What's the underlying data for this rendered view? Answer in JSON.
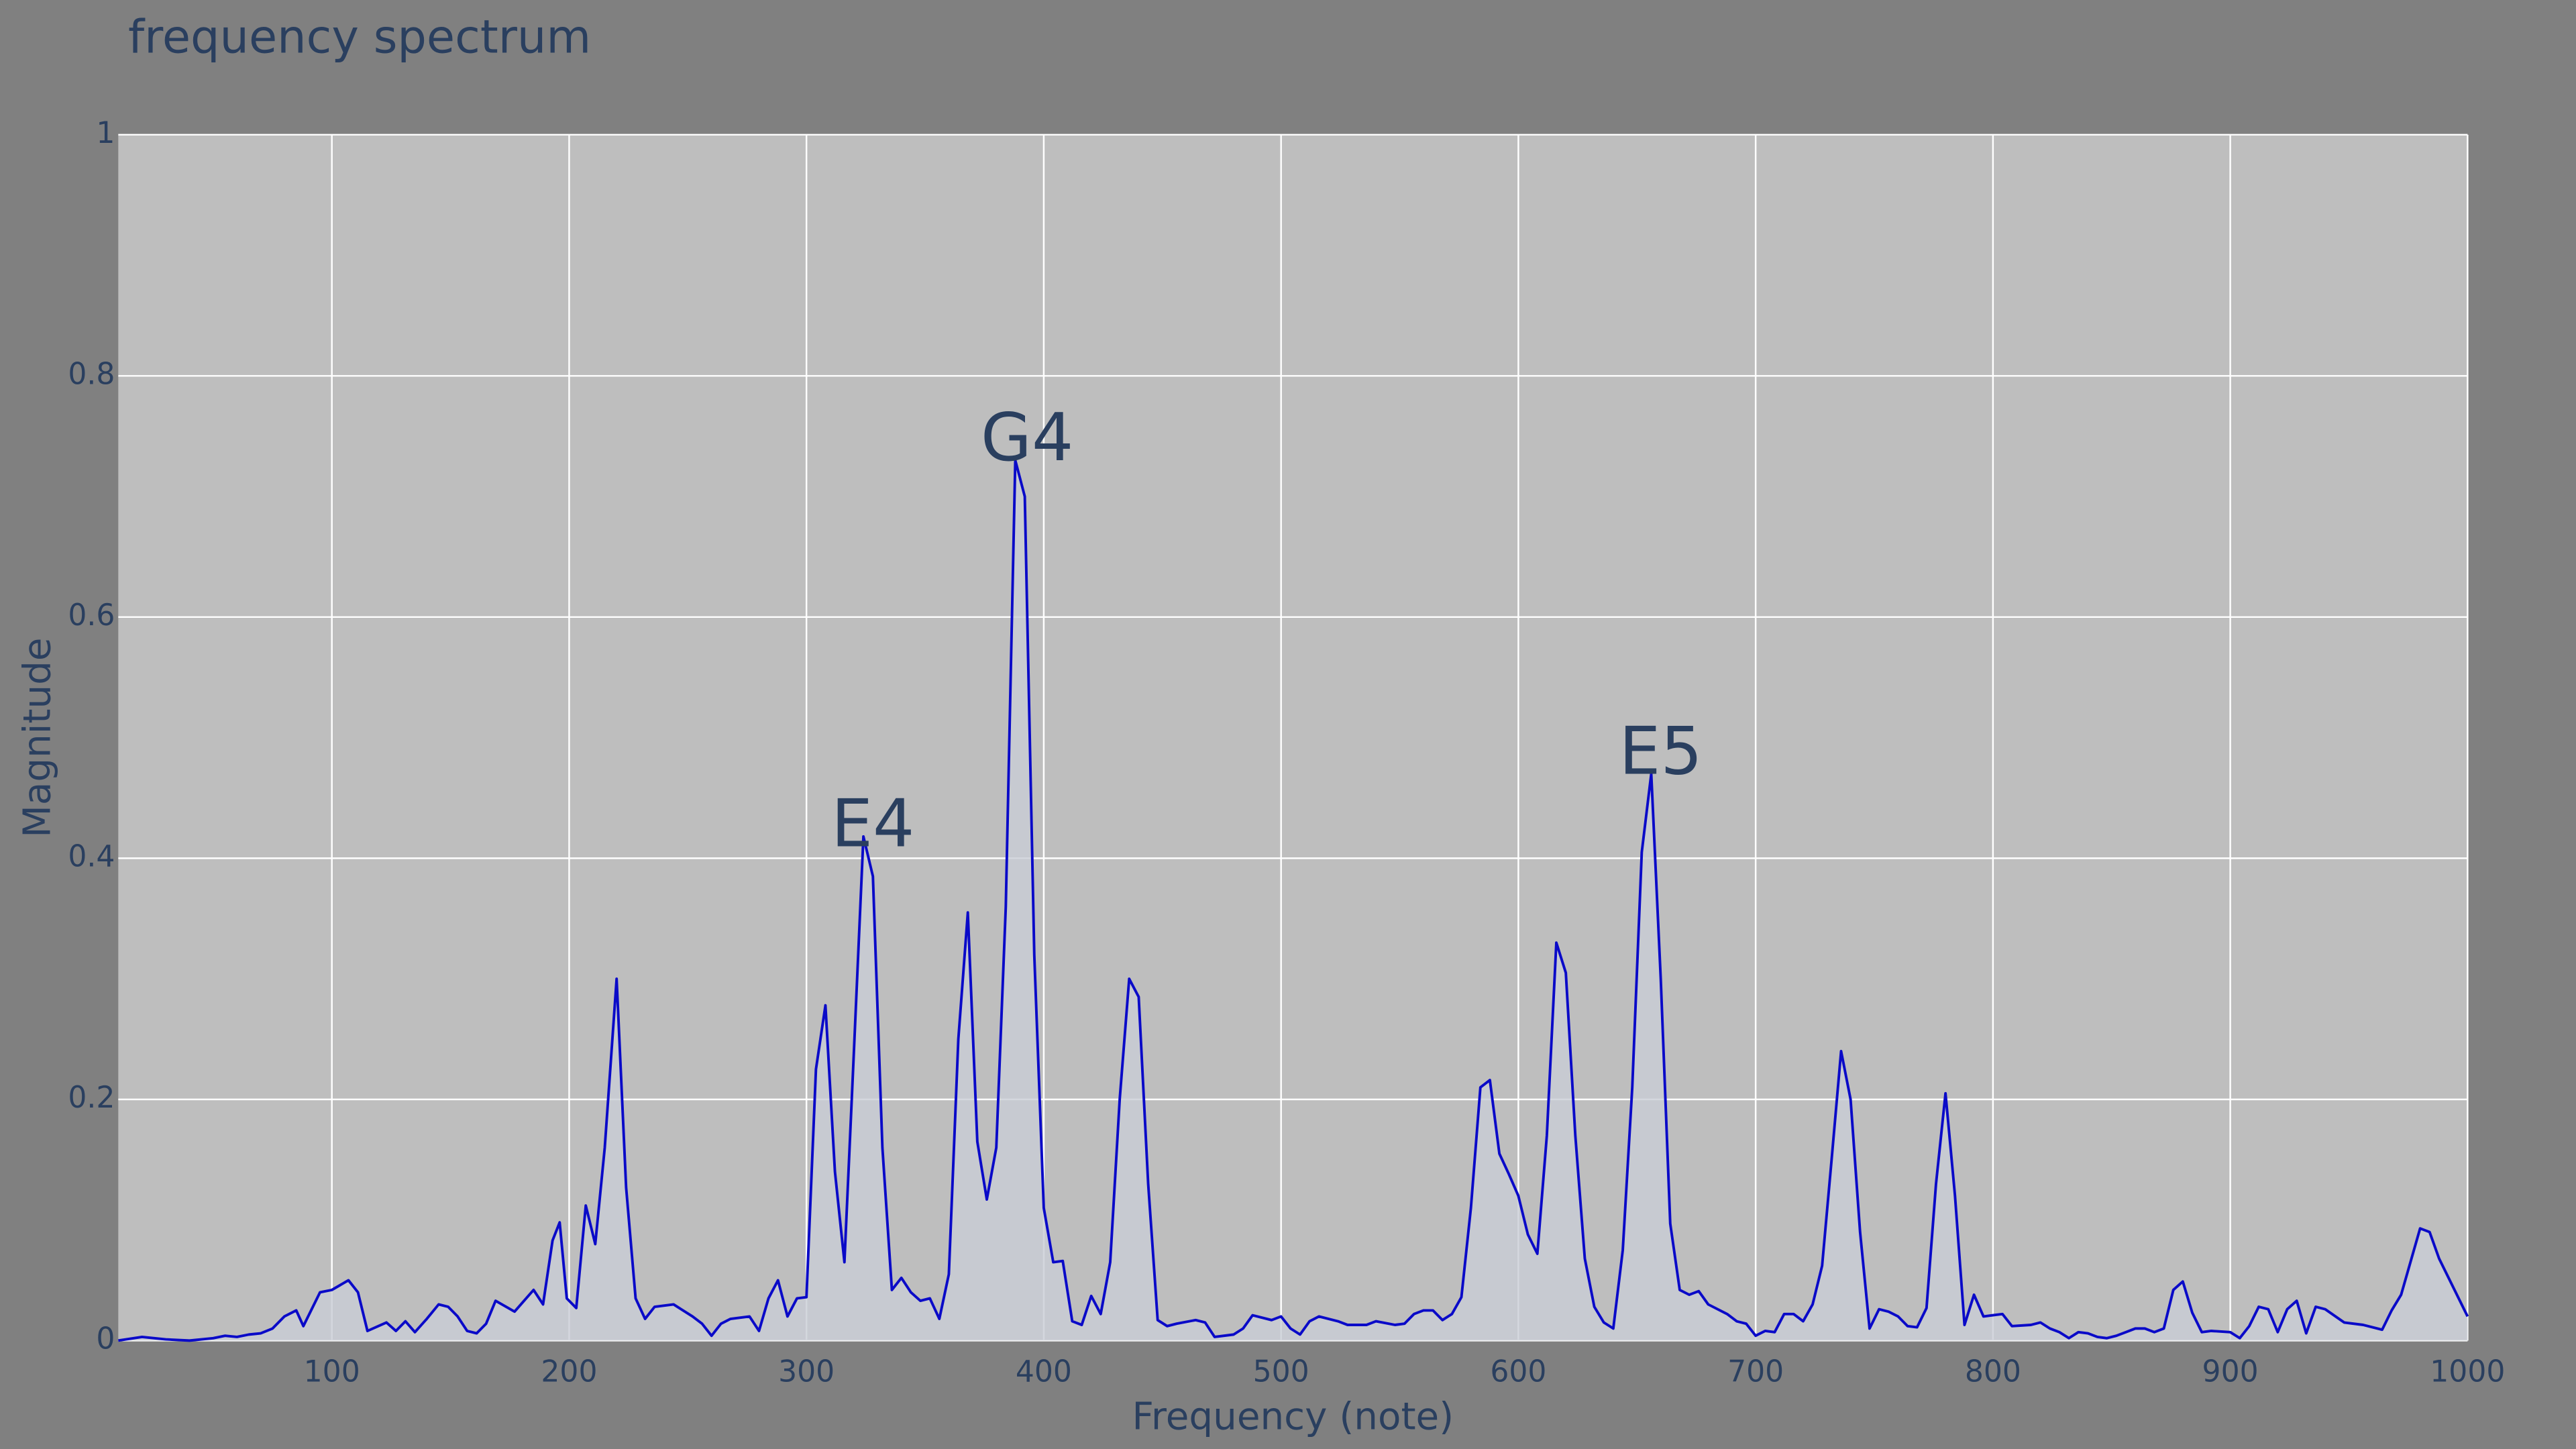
{
  "chart_data": {
    "type": "line",
    "title": "frequency spectrum",
    "x_label": "Frequency (note)",
    "y_label": "Magnitude",
    "xlim": [
      10,
      1000
    ],
    "ylim": [
      0,
      1
    ],
    "xticks": [
      100,
      200,
      300,
      400,
      500,
      600,
      700,
      800,
      900,
      1000
    ],
    "yticks": [
      0,
      0.2,
      0.4,
      0.6,
      0.8,
      1
    ],
    "grid": true,
    "color": "#0a0ac8",
    "fill_color": "#c9cdd6",
    "x": [
      10,
      20,
      30,
      40,
      50,
      55,
      60,
      65,
      70,
      75,
      80,
      85,
      88,
      95,
      100,
      107,
      111,
      115,
      123,
      127,
      131,
      135,
      140,
      145,
      149,
      153,
      157,
      161,
      165,
      169,
      177,
      185,
      189,
      193,
      196,
      199,
      203,
      207,
      211,
      215,
      220,
      224,
      228,
      232,
      236,
      244,
      252,
      256,
      260,
      264,
      268,
      276,
      280,
      284,
      288,
      292,
      296,
      300,
      304,
      308,
      312,
      316,
      320,
      324,
      328,
      332,
      336,
      340,
      344,
      348,
      352,
      356,
      360,
      364,
      368,
      372,
      376,
      380,
      384,
      388,
      392,
      396,
      400,
      404,
      408,
      412,
      416,
      420,
      424,
      428,
      432,
      436,
      440,
      444,
      448,
      452,
      456,
      464,
      468,
      472,
      480,
      484,
      488,
      496,
      500,
      504,
      508,
      512,
      516,
      524,
      528,
      536,
      540,
      548,
      552,
      556,
      560,
      564,
      568,
      572,
      576,
      580,
      584,
      588,
      592,
      596,
      600,
      604,
      608,
      612,
      616,
      620,
      624,
      628,
      632,
      636,
      640,
      644,
      648,
      652,
      656,
      660,
      664,
      668,
      672,
      676,
      680,
      688,
      692,
      696,
      700,
      704,
      708,
      712,
      716,
      720,
      724,
      728,
      732,
      736,
      740,
      744,
      748,
      752,
      756,
      760,
      764,
      768,
      772,
      776,
      780,
      784,
      788,
      792,
      796,
      800,
      804,
      808,
      816,
      820,
      824,
      828,
      832,
      836,
      840,
      844,
      848,
      852,
      856,
      860,
      864,
      868,
      872,
      876,
      880,
      884,
      888,
      892,
      900,
      904,
      908,
      912,
      916,
      920,
      924,
      928,
      932,
      936,
      940,
      948,
      956,
      964,
      968,
      972,
      980,
      984,
      988,
      992,
      1000
    ],
    "values": [
      0.0,
      0.003,
      0.001,
      0.0,
      0.002,
      0.004,
      0.003,
      0.005,
      0.006,
      0.01,
      0.02,
      0.025,
      0.012,
      0.04,
      0.042,
      0.05,
      0.04,
      0.008,
      0.015,
      0.008,
      0.016,
      0.007,
      0.018,
      0.03,
      0.028,
      0.02,
      0.008,
      0.006,
      0.014,
      0.033,
      0.024,
      0.042,
      0.03,
      0.083,
      0.098,
      0.035,
      0.027,
      0.112,
      0.08,
      0.16,
      0.3,
      0.127,
      0.035,
      0.018,
      0.028,
      0.03,
      0.02,
      0.014,
      0.004,
      0.014,
      0.018,
      0.02,
      0.008,
      0.035,
      0.05,
      0.02,
      0.035,
      0.036,
      0.225,
      0.278,
      0.14,
      0.065,
      0.24,
      0.418,
      0.385,
      0.16,
      0.042,
      0.052,
      0.04,
      0.033,
      0.035,
      0.018,
      0.055,
      0.25,
      0.355,
      0.165,
      0.117,
      0.16,
      0.36,
      0.73,
      0.7,
      0.32,
      0.11,
      0.065,
      0.066,
      0.016,
      0.013,
      0.037,
      0.022,
      0.065,
      0.2,
      0.3,
      0.285,
      0.13,
      0.017,
      0.012,
      0.014,
      0.017,
      0.015,
      0.003,
      0.005,
      0.01,
      0.021,
      0.017,
      0.02,
      0.01,
      0.005,
      0.016,
      0.02,
      0.016,
      0.013,
      0.013,
      0.016,
      0.013,
      0.014,
      0.022,
      0.025,
      0.025,
      0.017,
      0.022,
      0.036,
      0.11,
      0.21,
      0.216,
      0.155,
      0.138,
      0.12,
      0.088,
      0.072,
      0.17,
      0.33,
      0.305,
      0.17,
      0.068,
      0.028,
      0.015,
      0.01,
      0.075,
      0.21,
      0.405,
      0.47,
      0.3,
      0.097,
      0.042,
      0.038,
      0.041,
      0.03,
      0.022,
      0.016,
      0.014,
      0.004,
      0.008,
      0.007,
      0.022,
      0.022,
      0.016,
      0.03,
      0.062,
      0.15,
      0.24,
      0.2,
      0.09,
      0.01,
      0.026,
      0.024,
      0.02,
      0.012,
      0.011,
      0.027,
      0.13,
      0.205,
      0.12,
      0.013,
      0.038,
      0.02,
      0.021,
      0.022,
      0.012,
      0.013,
      0.015,
      0.01,
      0.007,
      0.002,
      0.007,
      0.006,
      0.003,
      0.002,
      0.004,
      0.007,
      0.01,
      0.01,
      0.007,
      0.01,
      0.042,
      0.049,
      0.023,
      0.007,
      0.008,
      0.007,
      0.002,
      0.012,
      0.028,
      0.026,
      0.007,
      0.026,
      0.033,
      0.006,
      0.028,
      0.026,
      0.015,
      0.013,
      0.009,
      0.025,
      0.038,
      0.093,
      0.09,
      0.068,
      0.052,
      0.02
    ],
    "annotations": [
      {
        "text": "E4",
        "x": 328,
        "y": 0.41
      },
      {
        "text": "G4",
        "x": 393,
        "y": 0.73
      },
      {
        "text": "E5",
        "x": 660,
        "y": 0.47
      }
    ]
  }
}
